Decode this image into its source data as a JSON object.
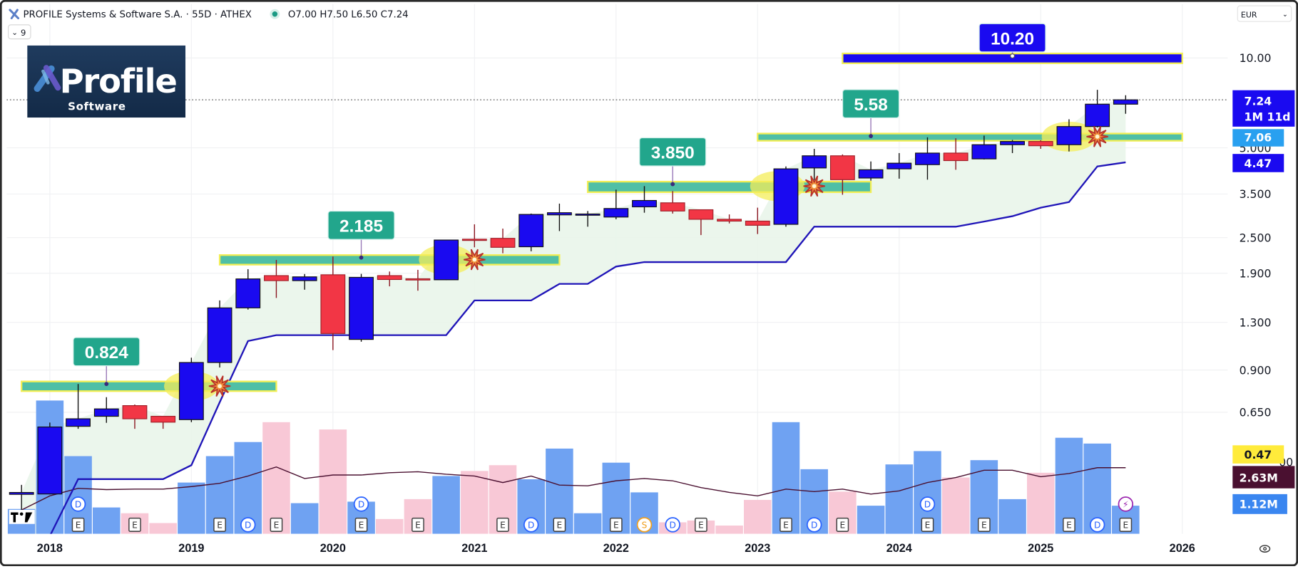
{
  "header": {
    "title": "PROFILE Systems & Software S.A. · 55D · ATHEX",
    "ohlc": "O7.00 H7.50 L6.50 C7.24",
    "indicators_toggle": "9",
    "currency": "EUR"
  },
  "logo": {
    "main": "Profile",
    "sub": "Software"
  },
  "price_labels": {
    "last": "7.24",
    "countdown": "1M 11d",
    "line2": "7.06",
    "stop": "4.47",
    "osc": "0.47",
    "vol_ma": "2.63M",
    "vol": "1.12M"
  },
  "colors": {
    "up": "#1a0af0",
    "down": "#f23645",
    "vol_up": "#6fa2f2",
    "vol_down": "#f8c8d6",
    "band": "#4fbfa6",
    "band_border": "#f2ee55",
    "label_bg": "#22a68c",
    "target_bg": "#1a0af0",
    "stop_line": "#1f14b8",
    "fill": "#e9f5ea",
    "vol_ma": "#4a1030"
  },
  "chart_data": {
    "type": "candlestick",
    "title": "PROFILE Systems & Software S.A. · 55D · ATHEX",
    "scale": "log",
    "ylim": [
      0.3,
      11.5
    ],
    "y_ticks": [
      "10.00",
      "5.000",
      "3.500",
      "2.500",
      "1.900",
      "1.300",
      "0.900",
      "0.650"
    ],
    "x_ticks": [
      {
        "label": "2018",
        "bar": 1
      },
      {
        "label": "2019",
        "bar": 6
      },
      {
        "label": "2020",
        "bar": 11
      },
      {
        "label": "2021",
        "bar": 16
      },
      {
        "label": "2022",
        "bar": 21
      },
      {
        "label": "2023",
        "bar": 26
      },
      {
        "label": "2024",
        "bar": 31
      },
      {
        "label": "2025",
        "bar": 36
      },
      {
        "label": "2026",
        "bar": 41
      }
    ],
    "candles_ohlc": [
      [
        0.345,
        0.371,
        0.298,
        0.35
      ],
      [
        0.346,
        0.6,
        0.345,
        0.58
      ],
      [
        0.583,
        0.808,
        0.572,
        0.618
      ],
      [
        0.63,
        0.73,
        0.599,
        0.667
      ],
      [
        0.684,
        0.69,
        0.572,
        0.618
      ],
      [
        0.63,
        0.63,
        0.572,
        0.602
      ],
      [
        0.614,
        0.99,
        0.602,
        0.954
      ],
      [
        0.954,
        1.54,
        0.918,
        1.454
      ],
      [
        1.454,
        1.96,
        1.435,
        1.818
      ],
      [
        1.865,
        2.105,
        1.57,
        1.794
      ],
      [
        1.794,
        1.888,
        1.673,
        1.847
      ],
      [
        1.877,
        2.16,
        1.05,
        1.193
      ],
      [
        1.14,
        1.89,
        1.12,
        1.84
      ],
      [
        1.865,
        1.925,
        1.717,
        1.81
      ],
      [
        1.82,
        1.95,
        1.66,
        1.815
      ],
      [
        1.806,
        2.46,
        1.8,
        2.454
      ],
      [
        2.47,
        2.77,
        2.32,
        2.46
      ],
      [
        2.486,
        2.68,
        2.216,
        2.32
      ],
      [
        2.33,
        3.01,
        2.25,
        2.99
      ],
      [
        2.98,
        3.25,
        2.63,
        3.03
      ],
      [
        2.99,
        3.07,
        2.72,
        3.0
      ],
      [
        2.93,
        3.62,
        2.88,
        3.13
      ],
      [
        3.17,
        3.72,
        3.03,
        3.33
      ],
      [
        3.27,
        3.58,
        3.01,
        3.07
      ],
      [
        3.1,
        3.1,
        2.55,
        2.88
      ],
      [
        2.88,
        2.99,
        2.79,
        2.84
      ],
      [
        2.84,
        3.15,
        2.57,
        2.75
      ],
      [
        2.77,
        4.33,
        2.72,
        4.25
      ],
      [
        4.28,
        4.96,
        3.9,
        4.7
      ],
      [
        4.7,
        4.75,
        3.48,
        3.91
      ],
      [
        3.96,
        4.5,
        3.88,
        4.22
      ],
      [
        4.25,
        4.8,
        3.94,
        4.44
      ],
      [
        4.39,
        5.42,
        3.91,
        4.8
      ],
      [
        4.8,
        5.38,
        4.22,
        4.53
      ],
      [
        4.59,
        5.49,
        4.57,
        5.12
      ],
      [
        5.12,
        5.31,
        4.8,
        5.25
      ],
      [
        5.25,
        5.3,
        4.96,
        5.08
      ],
      [
        5.12,
        6.23,
        4.86,
        5.89
      ],
      [
        5.89,
        7.82,
        5.85,
        7.0
      ],
      [
        7.0,
        7.5,
        6.5,
        7.24
      ]
    ],
    "volume_millions": [
      0.99,
      5.3,
      3.09,
      1.05,
      0.82,
      0.43,
      2.04,
      3.09,
      3.65,
      4.44,
      1.22,
      4.15,
      1.28,
      0.59,
      1.38,
      2.3,
      2.5,
      2.73,
      2.17,
      3.39,
      0.82,
      2.83,
      1.65,
      0.46,
      0.53,
      0.33,
      1.35,
      4.44,
      2.57,
      1.68,
      1.12,
      2.76,
      3.29,
      2.24,
      2.93,
      1.38,
      2.43,
      3.82,
      3.59,
      1.12
    ],
    "volume_ma_millions": [
      0.95,
      1.51,
      1.81,
      1.76,
      1.78,
      1.78,
      1.88,
      2.01,
      2.3,
      2.66,
      2.2,
      2.34,
      2.34,
      2.43,
      2.47,
      2.37,
      2.3,
      2.04,
      2.3,
      1.94,
      1.91,
      2.11,
      2.2,
      2.11,
      1.84,
      1.65,
      1.51,
      1.78,
      1.68,
      1.78,
      1.58,
      1.71,
      2.04,
      2.24,
      2.53,
      2.53,
      2.27,
      2.4,
      2.63,
      2.63
    ],
    "trailing_stop": [
      null,
      0.25,
      0.388,
      0.388,
      0.388,
      0.388,
      0.432,
      0.702,
      1.126,
      1.178,
      1.178,
      1.178,
      1.178,
      1.178,
      1.178,
      1.178,
      1.54,
      1.54,
      1.54,
      1.75,
      1.75,
      2.0,
      2.07,
      2.07,
      2.07,
      2.07,
      2.07,
      2.07,
      2.72,
      2.72,
      2.72,
      2.72,
      2.72,
      2.72,
      2.83,
      2.95,
      3.15,
      3.29,
      4.33,
      4.47
    ],
    "levels": [
      {
        "label": "0.824",
        "top": 0.824,
        "bottom": 0.765,
        "from_bar": 0,
        "to_bar": 9,
        "label_bar": 3,
        "kind": "support"
      },
      {
        "label": "2.185",
        "top": 2.185,
        "bottom": 2.03,
        "from_bar": 7,
        "to_bar": 19,
        "label_bar": 12,
        "kind": "support"
      },
      {
        "label": "3.850",
        "top": 3.85,
        "bottom": 3.55,
        "from_bar": 20,
        "to_bar": 30,
        "label_bar": 23,
        "kind": "support"
      },
      {
        "label": "5.58",
        "top": 5.58,
        "bottom": 5.28,
        "from_bar": 26,
        "to_bar": 41,
        "label_bar": 30,
        "kind": "support"
      },
      {
        "label": "10.20",
        "top": 10.35,
        "bottom": 9.6,
        "from_bar": 29,
        "to_bar": 41,
        "label_bar": 35,
        "kind": "target"
      }
    ],
    "signals": [
      {
        "ellipse_bar": 6,
        "star_bar": 7,
        "price": 0.795
      },
      {
        "ellipse_bar": 15,
        "star_bar": 16,
        "price": 2.11
      },
      {
        "ellipse_bar": 26.7,
        "star_bar": 28,
        "price": 3.72
      },
      {
        "ellipse_bar": 37,
        "star_bar": 38,
        "price": 5.45
      }
    ],
    "events": [
      {
        "bar": 2,
        "items": [
          "D",
          "E"
        ]
      },
      {
        "bar": 4,
        "items": [
          "E"
        ]
      },
      {
        "bar": 7,
        "items": [
          "E"
        ]
      },
      {
        "bar": 8,
        "items": [
          "D"
        ]
      },
      {
        "bar": 9,
        "items": [
          "E"
        ]
      },
      {
        "bar": 12,
        "items": [
          "D",
          "E"
        ]
      },
      {
        "bar": 14,
        "items": [
          "E"
        ]
      },
      {
        "bar": 17,
        "items": [
          "E"
        ]
      },
      {
        "bar": 18,
        "items": [
          "D"
        ]
      },
      {
        "bar": 19,
        "items": [
          "E"
        ]
      },
      {
        "bar": 21,
        "items": [
          "E"
        ]
      },
      {
        "bar": 22,
        "items": [
          "S"
        ]
      },
      {
        "bar": 23,
        "items": [
          "D"
        ]
      },
      {
        "bar": 24,
        "items": [
          "E"
        ]
      },
      {
        "bar": 27,
        "items": [
          "E"
        ]
      },
      {
        "bar": 28,
        "items": [
          "D"
        ]
      },
      {
        "bar": 29,
        "items": [
          "E"
        ]
      },
      {
        "bar": 32,
        "items": [
          "D",
          "E"
        ]
      },
      {
        "bar": 34,
        "items": [
          "E"
        ]
      },
      {
        "bar": 37,
        "items": [
          "E"
        ]
      },
      {
        "bar": 38,
        "items": [
          "D"
        ]
      },
      {
        "bar": 39,
        "items": [
          "⚡",
          "E"
        ]
      }
    ],
    "last_price": 7.24
  }
}
